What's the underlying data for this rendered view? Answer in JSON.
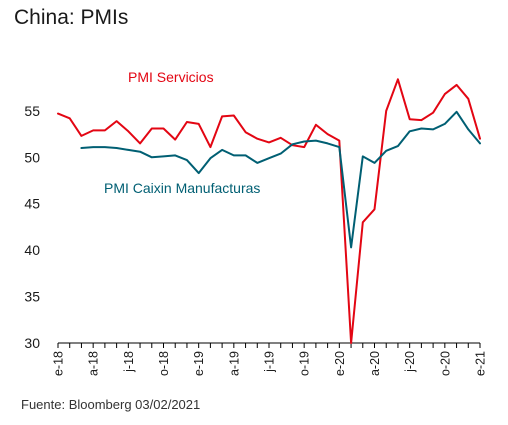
{
  "chart_data": {
    "type": "line",
    "title": "China: PMIs",
    "source": "Fuente: Bloomberg 03/02/2021",
    "xlabel": "",
    "ylabel": "",
    "ylim": [
      30,
      58
    ],
    "yticks": [
      30,
      35,
      40,
      45,
      50,
      55
    ],
    "x_start": "2018-01",
    "x_end": "2021-01",
    "x_tick_labels": [
      "e-18",
      "a-18",
      "j-18",
      "o-18",
      "e-19",
      "a-19",
      "j-19",
      "o-19",
      "e-20",
      "a-20",
      "j-20",
      "o-20",
      "e-21"
    ],
    "x_tick_months": [
      "2018-01",
      "2018-04",
      "2018-07",
      "2018-10",
      "2019-01",
      "2019-04",
      "2019-07",
      "2019-10",
      "2020-01",
      "2020-04",
      "2020-07",
      "2020-10",
      "2021-01"
    ],
    "grid": false,
    "series": [
      {
        "name": "PMI Servicios",
        "color": "#e30613",
        "start": "2018-01",
        "values": [
          54.7,
          54.2,
          52.3,
          52.9,
          52.9,
          53.9,
          52.8,
          51.5,
          53.1,
          53.1,
          51.9,
          53.8,
          53.6,
          51.1,
          54.4,
          54.5,
          52.7,
          52.0,
          51.6,
          52.1,
          51.3,
          51.1,
          53.5,
          52.5,
          51.8,
          26.5,
          43.0,
          44.4,
          55.0,
          58.4,
          54.1,
          54.0,
          54.8,
          56.8,
          57.8,
          56.3,
          52.0
        ]
      },
      {
        "name": "PMI Caixin Manufacturas",
        "color": "#005f73",
        "start": "2018-03",
        "values": [
          51.0,
          51.1,
          51.1,
          51.0,
          50.8,
          50.6,
          50.0,
          50.1,
          50.2,
          49.7,
          48.3,
          49.9,
          50.8,
          50.2,
          50.2,
          49.4,
          49.9,
          50.4,
          51.4,
          51.7,
          51.8,
          51.5,
          51.1,
          40.3,
          50.1,
          49.4,
          50.7,
          51.2,
          52.8,
          53.1,
          53.0,
          53.6,
          54.9,
          53.0,
          51.5
        ]
      }
    ]
  }
}
